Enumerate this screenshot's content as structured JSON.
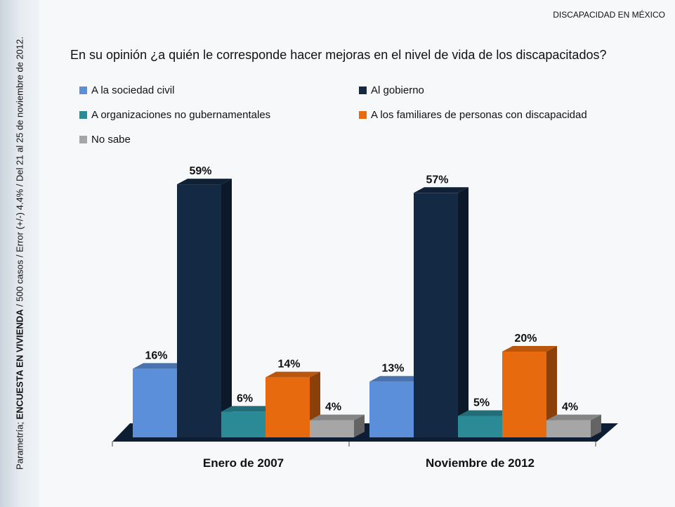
{
  "header": {
    "tag": "DISCAPACIDAD EN MÉXICO"
  },
  "side": {
    "prefix": "Parametría; ",
    "bold": "ENCUESTA EN VIVIENDA",
    "rest": " / 500 casos / Error (+/-) 4.4% / Del 21 al 25 de noviembre de 2012."
  },
  "question": "En su opinión ¿a quién le corresponde hacer mejoras en el nivel de vida de los discapacitados?",
  "legend": [
    {
      "label": "A la sociedad civil",
      "color": "#5b8fd9"
    },
    {
      "label": "Al gobierno",
      "color": "#142944"
    },
    {
      "label": "A organizaciones no gubernamentales",
      "color": "#2a8a96"
    },
    {
      "label": "A los familiares de personas con discapacidad",
      "color": "#e86a0f"
    },
    {
      "label": "No sabe",
      "color": "#a6a6a6"
    }
  ],
  "chart_data": {
    "type": "bar",
    "categories": [
      "Enero de 2007",
      "Noviembre de 2012"
    ],
    "series": [
      {
        "name": "A la sociedad civil",
        "values": [
          16,
          13
        ],
        "labels": [
          "16%",
          "13%"
        ]
      },
      {
        "name": "Al gobierno",
        "values": [
          59,
          57
        ],
        "labels": [
          "59%",
          "57%"
        ]
      },
      {
        "name": "A organizaciones no gubernamentales",
        "values": [
          6,
          5
        ],
        "labels": [
          "6%",
          "5%"
        ]
      },
      {
        "name": "A los familiares de personas con discapacidad",
        "values": [
          14,
          20
        ],
        "labels": [
          "14%",
          "20%"
        ]
      },
      {
        "name": "No sabe",
        "values": [
          4,
          4
        ],
        "labels": [
          "4%",
          "4%"
        ]
      }
    ],
    "ylim": [
      0,
      60
    ],
    "colors": [
      "#5b8fd9",
      "#142944",
      "#2a8a96",
      "#e86a0f",
      "#a6a6a6"
    ]
  }
}
